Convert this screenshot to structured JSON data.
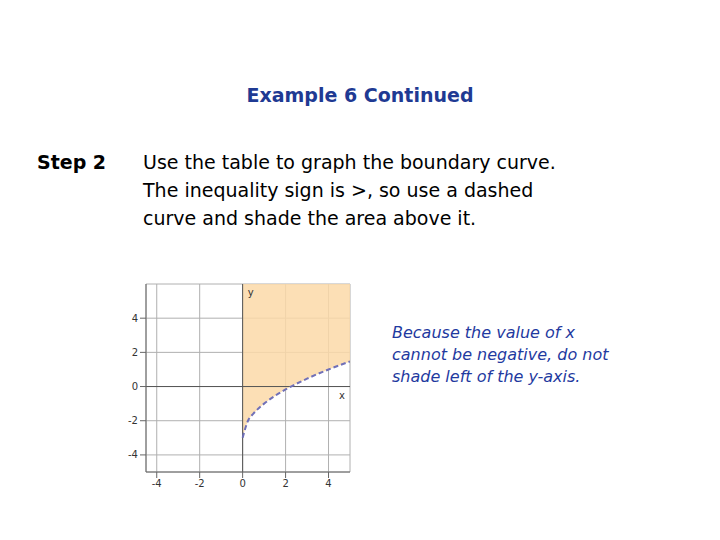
{
  "header": {
    "title": "Example 6 Continued"
  },
  "step": {
    "label": "Step 2",
    "text": "Use the table to graph the boundary curve. The inequality sign is >, so use a dashed curve and shade the area above it."
  },
  "note": "Because the value of x cannot be negative, do not shade left of the y-axis.",
  "chart_data": {
    "type": "area",
    "x": [
      0,
      0.25,
      0.5,
      1,
      1.5,
      2,
      3,
      4,
      5
    ],
    "values": [
      -3,
      -2,
      -1.59,
      -1,
      -0.55,
      -0.17,
      0.46,
      1,
      1.47
    ],
    "x_label": "x",
    "y_label": "y",
    "xlim": [
      -4.5,
      5
    ],
    "ylim": [
      -5,
      6
    ],
    "xticks": [
      -4,
      -2,
      0,
      2,
      4
    ],
    "yticks": [
      -4,
      -2,
      0,
      2,
      4
    ],
    "grid": true,
    "line_style": "dashed",
    "color": "#7070b8"
  }
}
